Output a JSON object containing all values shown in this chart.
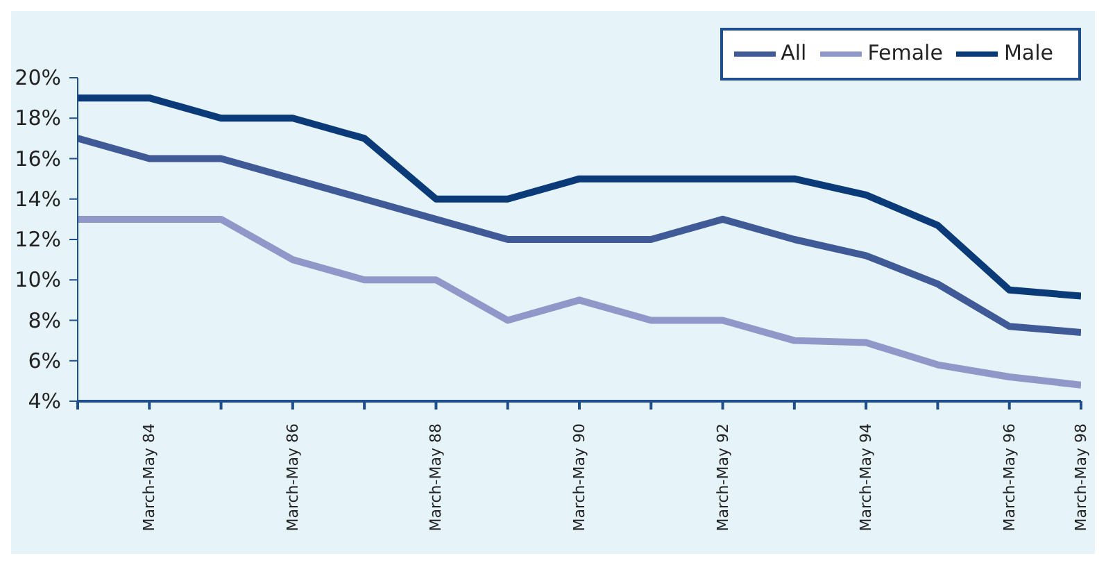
{
  "chart_data": {
    "type": "line",
    "categories": [
      null,
      "March-May 84",
      null,
      "March-May 86",
      null,
      "March-May 88",
      null,
      "March-May 90",
      null,
      "March-May 92",
      null,
      "March-May 94",
      null,
      "March-May 96",
      "March-May 98"
    ],
    "series": [
      {
        "name": "Male",
        "color": "#0a3a78",
        "values": [
          19,
          19,
          18,
          18,
          17,
          14,
          14,
          15,
          15,
          15,
          15,
          14.2,
          12.7,
          9.5,
          9.2
        ]
      },
      {
        "name": "Female",
        "color": "#8f98c8",
        "values": [
          13,
          13,
          13,
          11,
          10,
          10,
          8,
          9,
          8,
          8,
          7,
          6.9,
          5.8,
          5.2,
          4.8
        ]
      },
      {
        "name": "All",
        "color": "#3f5a96",
        "values": [
          17,
          16,
          16,
          15,
          14,
          13,
          12,
          12,
          12,
          13,
          12,
          11.2,
          9.8,
          7.7,
          7.4
        ]
      }
    ],
    "ylim": [
      4,
      20
    ],
    "yticks": [
      {
        "value": 4,
        "label": "4%"
      },
      {
        "value": 6,
        "label": "6%"
      },
      {
        "value": 8,
        "label": "8%"
      },
      {
        "value": 10,
        "label": "10%"
      },
      {
        "value": 12,
        "label": "12%"
      },
      {
        "value": 14,
        "label": "14%"
      },
      {
        "value": 16,
        "label": "16%"
      },
      {
        "value": 18,
        "label": "18%"
      },
      {
        "value": 20,
        "label": "20%"
      }
    ],
    "legend": "top right",
    "grid": false,
    "marker": "none",
    "line_style": "solid"
  }
}
